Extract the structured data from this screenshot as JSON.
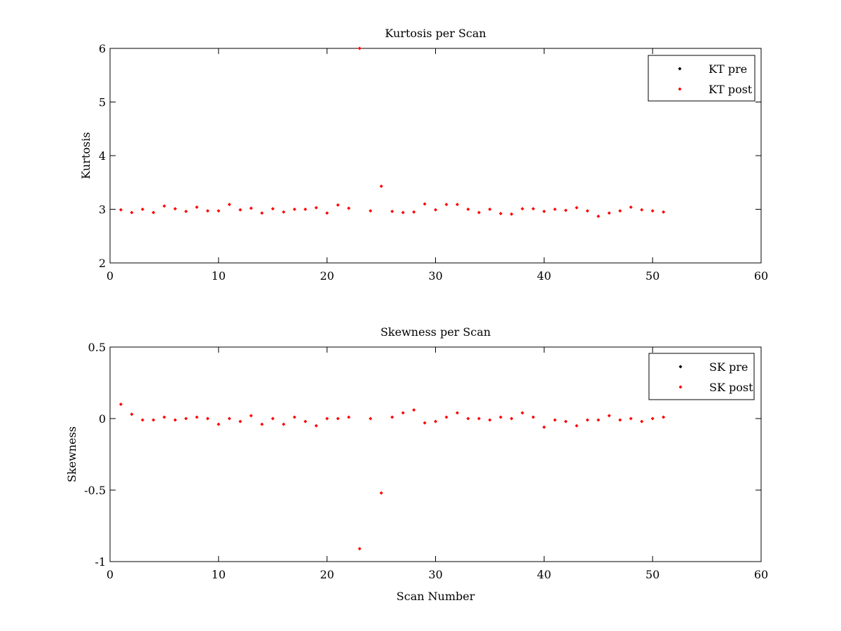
{
  "chart_data": [
    {
      "type": "scatter",
      "title": "Kurtosis per Scan",
      "xlabel": "",
      "ylabel": "Kurtosis",
      "xlim": [
        0,
        60
      ],
      "ylim": [
        2,
        6
      ],
      "xticks": [
        0,
        10,
        20,
        30,
        40,
        50,
        60
      ],
      "yticks": [
        2,
        3,
        4,
        5,
        6
      ],
      "xtick_labels": [
        "0",
        "10",
        "20",
        "30",
        "40",
        "50",
        "60"
      ],
      "ytick_labels": [
        "2",
        "3",
        "4",
        "5",
        "6"
      ],
      "grid": false,
      "legend_position": "top-right",
      "series": [
        {
          "name": "KT pre",
          "color": "#000000",
          "marker": "diamond",
          "x": [],
          "y": []
        },
        {
          "name": "KT post",
          "color": "#ff0000",
          "marker": "diamond",
          "x": [
            1,
            2,
            3,
            4,
            5,
            6,
            7,
            8,
            9,
            10,
            11,
            12,
            13,
            14,
            15,
            16,
            17,
            18,
            19,
            20,
            21,
            22,
            23,
            24,
            25,
            26,
            27,
            28,
            29,
            30,
            31,
            32,
            33,
            34,
            35,
            36,
            37,
            38,
            39,
            40,
            41,
            42,
            43,
            44,
            45,
            46,
            47,
            48,
            49,
            50,
            51
          ],
          "y": [
            2.99,
            2.94,
            3.0,
            2.94,
            3.06,
            3.01,
            2.96,
            3.04,
            2.97,
            2.97,
            3.09,
            2.99,
            3.02,
            2.93,
            3.01,
            2.95,
            3.0,
            3.0,
            3.03,
            2.93,
            3.08,
            3.02,
            6.0,
            2.97,
            3.43,
            2.96,
            2.94,
            2.95,
            3.1,
            2.99,
            3.09,
            3.09,
            3.0,
            2.94,
            3.0,
            2.92,
            2.91,
            3.01,
            3.01,
            2.96,
            3.0,
            2.98,
            3.03,
            2.97,
            2.87,
            2.93,
            2.97,
            3.04,
            2.99,
            2.97,
            2.95
          ]
        }
      ]
    },
    {
      "type": "scatter",
      "title": "Skewness per Scan",
      "xlabel": "Scan Number",
      "ylabel": "Skewness",
      "xlim": [
        0,
        60
      ],
      "ylim": [
        -1,
        0.5
      ],
      "xticks": [
        0,
        10,
        20,
        30,
        40,
        50,
        60
      ],
      "yticks": [
        -1,
        -0.5,
        0,
        0.5
      ],
      "xtick_labels": [
        "0",
        "10",
        "20",
        "30",
        "40",
        "50",
        "60"
      ],
      "ytick_labels": [
        "-1",
        "-0.5",
        "0",
        "0.5"
      ],
      "grid": false,
      "legend_position": "top-right",
      "series": [
        {
          "name": "SK pre",
          "color": "#000000",
          "marker": "diamond",
          "x": [],
          "y": []
        },
        {
          "name": "SK post",
          "color": "#ff0000",
          "marker": "diamond",
          "x": [
            1,
            2,
            3,
            4,
            5,
            6,
            7,
            8,
            9,
            10,
            11,
            12,
            13,
            14,
            15,
            16,
            17,
            18,
            19,
            20,
            21,
            22,
            23,
            24,
            25,
            26,
            27,
            28,
            29,
            30,
            31,
            32,
            33,
            34,
            35,
            36,
            37,
            38,
            39,
            40,
            41,
            42,
            43,
            44,
            45,
            46,
            47,
            48,
            49,
            50,
            51
          ],
          "y": [
            0.1,
            0.03,
            -0.01,
            -0.01,
            0.01,
            -0.01,
            0.0,
            0.01,
            0.0,
            -0.04,
            0.0,
            -0.02,
            0.02,
            -0.04,
            0.0,
            -0.04,
            0.01,
            -0.02,
            -0.05,
            0.0,
            0.0,
            0.01,
            -0.91,
            0.0,
            -0.52,
            0.01,
            0.04,
            0.06,
            -0.03,
            -0.02,
            0.01,
            0.04,
            0.0,
            0.0,
            -0.01,
            0.01,
            0.0,
            0.04,
            0.01,
            -0.06,
            -0.01,
            -0.02,
            -0.05,
            -0.01,
            -0.01,
            0.02,
            -0.01,
            0.0,
            -0.02,
            0.0,
            0.01
          ]
        }
      ]
    }
  ]
}
